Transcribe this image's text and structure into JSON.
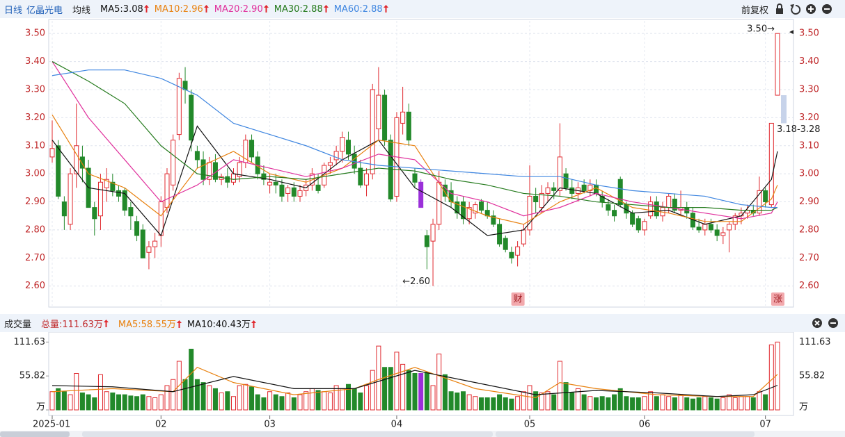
{
  "header": {
    "period": "日线",
    "stock": "亿晶光电",
    "ma_label": "均线",
    "adjust": "前复权",
    "volume_title": "成交量"
  },
  "chart_data": [
    {
      "type": "candlestick",
      "up_color": "#e0282e",
      "down_color": "#22892a",
      "highlight_index": 61,
      "highlight_color": "#9b30d9",
      "xlim": [
        0,
        120
      ],
      "ylim": [
        2.53,
        3.545
      ],
      "yticks": [
        {
          "value": 2.6,
          "label": "2.60"
        },
        {
          "value": 2.7,
          "label": "2.70"
        },
        {
          "value": 2.8,
          "label": "2.80"
        },
        {
          "value": 2.9,
          "label": "2.90"
        },
        {
          "value": 3.0,
          "label": "3.00"
        },
        {
          "value": 3.1,
          "label": "3.10"
        },
        {
          "value": 3.2,
          "label": "3.20"
        },
        {
          "value": 3.3,
          "label": "3.30"
        },
        {
          "value": 3.4,
          "label": "3.40"
        },
        {
          "value": 3.5,
          "label": "3.50"
        }
      ],
      "grid": true,
      "candles": [
        [
          3.06,
          3.19,
          3.04,
          3.09
        ],
        [
          3.1,
          3.12,
          2.91,
          2.92
        ],
        [
          2.9,
          2.92,
          2.8,
          2.85
        ],
        [
          2.82,
          3.02,
          2.8,
          3.0
        ],
        [
          3.0,
          3.25,
          2.95,
          3.1
        ],
        [
          3.06,
          3.1,
          2.97,
          3.02
        ],
        [
          3.02,
          3.05,
          2.88,
          2.88
        ],
        [
          2.88,
          2.9,
          2.78,
          2.84
        ],
        [
          2.85,
          3.0,
          2.8,
          2.97
        ],
        [
          2.95,
          3.02,
          2.9,
          2.98
        ],
        [
          2.97,
          3.0,
          2.92,
          2.94
        ],
        [
          2.94,
          2.96,
          2.9,
          2.92
        ],
        [
          2.94,
          2.95,
          2.85,
          2.87
        ],
        [
          2.88,
          2.9,
          2.8,
          2.85
        ],
        [
          2.83,
          2.85,
          2.76,
          2.78
        ],
        [
          2.8,
          2.82,
          2.7,
          2.7
        ],
        [
          2.72,
          2.76,
          2.66,
          2.74
        ],
        [
          2.74,
          2.79,
          2.7,
          2.76
        ],
        [
          2.78,
          2.92,
          2.74,
          2.9
        ],
        [
          2.88,
          3.02,
          2.86,
          3.0
        ],
        [
          2.96,
          3.14,
          2.94,
          3.12
        ],
        [
          3.14,
          3.36,
          3.12,
          3.34
        ],
        [
          3.33,
          3.38,
          3.25,
          3.3
        ],
        [
          3.28,
          3.3,
          3.08,
          3.12
        ],
        [
          3.08,
          3.1,
          3.02,
          3.05
        ],
        [
          3.05,
          3.08,
          2.96,
          2.98
        ],
        [
          2.98,
          3.06,
          2.96,
          3.04
        ],
        [
          3.04,
          3.07,
          2.97,
          2.98
        ],
        [
          2.98,
          3.0,
          2.96,
          2.99
        ],
        [
          2.99,
          3.02,
          2.95,
          2.97
        ],
        [
          2.97,
          3.02,
          2.96,
          3.0
        ],
        [
          2.99,
          3.06,
          2.97,
          3.04
        ],
        [
          3.04,
          3.14,
          3.02,
          3.12
        ],
        [
          3.12,
          3.14,
          3.04,
          3.06
        ],
        [
          3.06,
          3.08,
          2.98,
          3.0
        ],
        [
          3.0,
          3.03,
          2.96,
          2.98
        ],
        [
          2.96,
          3.0,
          2.93,
          2.97
        ],
        [
          2.97,
          3.0,
          2.93,
          2.96
        ],
        [
          2.96,
          2.98,
          2.9,
          2.92
        ],
        [
          2.93,
          2.96,
          2.9,
          2.95
        ],
        [
          2.95,
          2.97,
          2.9,
          2.92
        ],
        [
          2.92,
          2.96,
          2.9,
          2.94
        ],
        [
          2.94,
          2.98,
          2.92,
          2.96
        ],
        [
          2.96,
          3.02,
          2.94,
          3.0
        ],
        [
          2.96,
          3.0,
          2.93,
          2.94
        ],
        [
          2.96,
          3.04,
          2.95,
          3.03
        ],
        [
          3.03,
          3.06,
          3.0,
          3.04
        ],
        [
          3.05,
          3.1,
          3.03,
          3.08
        ],
        [
          3.08,
          3.15,
          3.04,
          3.13
        ],
        [
          3.12,
          3.15,
          3.05,
          3.07
        ],
        [
          3.07,
          3.1,
          3.0,
          3.02
        ],
        [
          3.02,
          3.05,
          2.95,
          2.96
        ],
        [
          2.96,
          3.02,
          2.92,
          3.0
        ],
        [
          3.0,
          3.32,
          2.98,
          3.3
        ],
        [
          3.16,
          3.38,
          3.12,
          3.28
        ],
        [
          3.28,
          3.3,
          3.1,
          3.12
        ],
        [
          3.12,
          3.14,
          2.9,
          2.91
        ],
        [
          2.92,
          3.22,
          2.9,
          3.2
        ],
        [
          3.18,
          3.31,
          3.14,
          3.22
        ],
        [
          3.22,
          3.25,
          3.1,
          3.12
        ],
        [
          3.0,
          3.02,
          2.95,
          2.97
        ],
        [
          2.97,
          2.98,
          2.88,
          2.88
        ],
        [
          2.78,
          2.8,
          2.66,
          2.74
        ],
        [
          2.76,
          2.84,
          2.6,
          2.82
        ],
        [
          2.82,
          3.01,
          2.8,
          2.97
        ],
        [
          2.96,
          2.98,
          2.9,
          2.92
        ],
        [
          2.94,
          2.97,
          2.88,
          2.9
        ],
        [
          2.9,
          2.92,
          2.84,
          2.86
        ],
        [
          2.9,
          2.92,
          2.82,
          2.84
        ],
        [
          2.84,
          2.9,
          2.82,
          2.88
        ],
        [
          2.86,
          2.9,
          2.84,
          2.89
        ],
        [
          2.9,
          2.91,
          2.86,
          2.87
        ],
        [
          2.87,
          2.9,
          2.84,
          2.85
        ],
        [
          2.85,
          2.87,
          2.81,
          2.82
        ],
        [
          2.82,
          2.84,
          2.74,
          2.75
        ],
        [
          2.77,
          2.78,
          2.72,
          2.73
        ],
        [
          2.72,
          2.74,
          2.68,
          2.7
        ],
        [
          2.71,
          2.76,
          2.67,
          2.74
        ],
        [
          2.75,
          2.82,
          2.74,
          2.8
        ],
        [
          2.8,
          3.03,
          2.78,
          2.92
        ],
        [
          2.92,
          2.95,
          2.86,
          2.9
        ],
        [
          2.88,
          2.96,
          2.86,
          2.93
        ],
        [
          2.93,
          2.97,
          2.9,
          2.95
        ],
        [
          2.95,
          2.97,
          2.91,
          2.94
        ],
        [
          2.94,
          3.18,
          2.92,
          3.06
        ],
        [
          3.0,
          3.02,
          2.94,
          2.95
        ],
        [
          2.95,
          2.98,
          2.91,
          2.93
        ],
        [
          2.93,
          2.97,
          2.9,
          2.95
        ],
        [
          2.96,
          2.98,
          2.93,
          2.94
        ],
        [
          2.94,
          2.98,
          2.92,
          2.96
        ],
        [
          2.96,
          2.98,
          2.92,
          2.93
        ],
        [
          2.92,
          2.94,
          2.88,
          2.9
        ],
        [
          2.89,
          2.91,
          2.85,
          2.87
        ],
        [
          2.87,
          2.89,
          2.83,
          2.85
        ],
        [
          2.98,
          2.99,
          2.88,
          2.89
        ],
        [
          2.89,
          2.9,
          2.84,
          2.86
        ],
        [
          2.86,
          2.87,
          2.81,
          2.82
        ],
        [
          2.84,
          2.85,
          2.79,
          2.8
        ],
        [
          2.8,
          2.84,
          2.78,
          2.83
        ],
        [
          2.85,
          2.92,
          2.84,
          2.9
        ],
        [
          2.9,
          2.92,
          2.84,
          2.85
        ],
        [
          2.85,
          2.9,
          2.83,
          2.88
        ],
        [
          2.88,
          2.93,
          2.86,
          2.92
        ],
        [
          2.91,
          2.93,
          2.86,
          2.87
        ],
        [
          2.87,
          2.94,
          2.85,
          2.88
        ],
        [
          2.88,
          2.9,
          2.84,
          2.86
        ],
        [
          2.86,
          2.88,
          2.8,
          2.81
        ],
        [
          2.81,
          2.84,
          2.79,
          2.8
        ],
        [
          2.8,
          2.84,
          2.78,
          2.82
        ],
        [
          2.82,
          2.84,
          2.79,
          2.8
        ],
        [
          2.8,
          2.82,
          2.76,
          2.78
        ],
        [
          2.78,
          2.81,
          2.75,
          2.79
        ],
        [
          2.8,
          2.83,
          2.72,
          2.82
        ],
        [
          2.82,
          2.86,
          2.8,
          2.85
        ],
        [
          2.85,
          2.88,
          2.82,
          2.86
        ],
        [
          2.86,
          2.89,
          2.84,
          2.87
        ],
        [
          2.87,
          2.89,
          2.85,
          2.86
        ],
        [
          2.86,
          2.99,
          2.85,
          2.94
        ],
        [
          2.94,
          2.95,
          2.88,
          2.9
        ],
        [
          2.89,
          3.18,
          2.88,
          3.18
        ],
        [
          3.28,
          3.5,
          3.28,
          3.5
        ]
      ],
      "series": [
        {
          "name": "MA5:3.08",
          "color": "#111111",
          "x": [
            0,
            6,
            12,
            18,
            24,
            30,
            36,
            42,
            48,
            54,
            60,
            66,
            72,
            78,
            84,
            90,
            96,
            102,
            108,
            114,
            119,
            120
          ],
          "values": [
            3.12,
            2.95,
            2.93,
            2.78,
            3.17,
            3.0,
            2.98,
            2.95,
            3.05,
            3.12,
            2.95,
            2.88,
            2.78,
            2.8,
            2.95,
            2.93,
            2.86,
            2.87,
            2.82,
            2.85,
            2.98,
            3.08
          ]
        },
        {
          "name": "MA10:2.96",
          "color": "#e8810f",
          "x": [
            0,
            6,
            12,
            18,
            24,
            30,
            36,
            42,
            48,
            54,
            60,
            66,
            72,
            78,
            84,
            90,
            96,
            102,
            108,
            114,
            119,
            120
          ],
          "values": [
            3.21,
            3.0,
            2.95,
            2.85,
            3.02,
            3.08,
            3.0,
            2.97,
            3.02,
            3.12,
            3.1,
            2.9,
            2.85,
            2.82,
            2.9,
            2.95,
            2.88,
            2.86,
            2.83,
            2.83,
            2.91,
            2.96
          ]
        },
        {
          "name": "MA20:2.90",
          "color": "#e0309c",
          "x": [
            0,
            6,
            12,
            18,
            24,
            30,
            36,
            42,
            48,
            54,
            60,
            66,
            72,
            78,
            84,
            90,
            96,
            102,
            108,
            114,
            119,
            120
          ],
          "values": [
            3.4,
            3.2,
            3.05,
            2.9,
            2.96,
            3.05,
            3.02,
            2.99,
            3.02,
            3.07,
            3.05,
            2.93,
            2.9,
            2.85,
            2.88,
            2.93,
            2.9,
            2.88,
            2.86,
            2.84,
            2.86,
            2.9
          ]
        },
        {
          "name": "MA30:2.88",
          "color": "#247a1c",
          "x": [
            0,
            6,
            12,
            18,
            24,
            30,
            36,
            42,
            48,
            54,
            60,
            66,
            72,
            78,
            84,
            90,
            96,
            102,
            108,
            114,
            119,
            120
          ],
          "values": [
            3.4,
            3.33,
            3.25,
            3.1,
            3.0,
            2.98,
            2.99,
            2.98,
            3.0,
            3.02,
            3.01,
            2.98,
            2.96,
            2.93,
            2.92,
            2.9,
            2.89,
            2.88,
            2.88,
            2.87,
            2.87,
            2.88
          ]
        },
        {
          "name": "MA60:2.88",
          "color": "#3f86e0",
          "x": [
            0,
            6,
            12,
            18,
            24,
            30,
            36,
            42,
            48,
            54,
            60,
            66,
            72,
            78,
            84,
            90,
            96,
            102,
            108,
            114,
            119,
            120
          ],
          "values": [
            3.35,
            3.37,
            3.37,
            3.34,
            3.28,
            3.18,
            3.14,
            3.1,
            3.05,
            3.03,
            3.02,
            3.01,
            3.0,
            2.99,
            2.99,
            2.96,
            2.94,
            2.93,
            2.92,
            2.89,
            2.88,
            2.88
          ]
        }
      ],
      "annotations": [
        {
          "text": "3.50→",
          "value": 3.5,
          "index": 120
        },
        {
          "text": "←2.60",
          "value": 2.6,
          "index": 63
        }
      ],
      "range_band": {
        "low": 3.18,
        "high": 3.28,
        "label": "3.18-3.28",
        "color": "#c7d3ea",
        "index": 120
      },
      "event_markers": [
        {
          "text": "财",
          "index": 77
        },
        {
          "text": "涨",
          "index": 120
        }
      ]
    },
    {
      "type": "bar",
      "xlim": [
        0,
        120
      ],
      "ylim": [
        0,
        128
      ],
      "yticks": [
        {
          "value": 0,
          "label": "万"
        },
        55.82,
        111.63
      ],
      "xticks": [
        {
          "value": 0,
          "label": "2025-01"
        },
        {
          "value": 18,
          "label": "02"
        },
        {
          "value": 36,
          "label": "03"
        },
        {
          "value": 57,
          "label": "04"
        },
        {
          "value": 79,
          "label": "05"
        },
        {
          "value": 98,
          "label": "06"
        },
        {
          "value": 118,
          "label": "07"
        }
      ],
      "values": [
        30,
        35,
        30,
        25,
        60,
        28,
        25,
        20,
        58,
        30,
        28,
        25,
        25,
        23,
        22,
        25,
        22,
        20,
        25,
        40,
        50,
        80,
        50,
        100,
        50,
        45,
        40,
        35,
        28,
        30,
        22,
        40,
        42,
        38,
        25,
        20,
        30,
        25,
        22,
        28,
        20,
        25,
        30,
        35,
        32,
        30,
        28,
        40,
        35,
        42,
        35,
        28,
        40,
        65,
        105,
        70,
        70,
        95,
        75,
        65,
        60,
        60,
        62,
        40,
        92,
        58,
        30,
        28,
        30,
        25,
        22,
        20,
        20,
        20,
        25,
        20,
        18,
        22,
        30,
        40,
        30,
        28,
        30,
        25,
        80,
        45,
        28,
        35,
        25,
        22,
        20,
        22,
        20,
        25,
        35,
        22,
        20,
        20,
        22,
        30,
        22,
        25,
        22,
        20,
        25,
        20,
        18,
        20,
        22,
        20,
        18,
        20,
        25,
        20,
        22,
        22,
        20,
        30,
        25,
        107,
        111.63
      ],
      "labels": {
        "total": "总量:111.63万"
      },
      "series": [
        {
          "name": "MA5:58.55万",
          "color": "#e8810f",
          "x": [
            0,
            10,
            20,
            24,
            30,
            40,
            50,
            54,
            60,
            70,
            80,
            84,
            90,
            100,
            110,
            116,
            120
          ],
          "values": [
            30,
            35,
            30,
            70,
            45,
            25,
            35,
            50,
            70,
            35,
            20,
            45,
            35,
            25,
            22,
            22,
            58.55
          ]
        },
        {
          "name": "MA10:40.43万",
          "color": "#111111",
          "x": [
            0,
            10,
            20,
            30,
            40,
            50,
            60,
            70,
            80,
            90,
            100,
            110,
            116,
            120
          ],
          "values": [
            40,
            38,
            30,
            55,
            35,
            35,
            65,
            45,
            25,
            32,
            28,
            22,
            25,
            40.43
          ]
        }
      ]
    }
  ]
}
